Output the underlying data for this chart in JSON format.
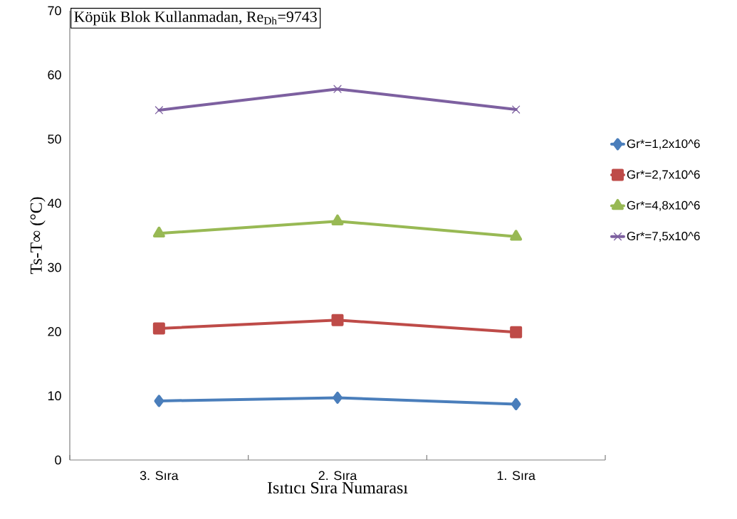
{
  "chart_data": {
    "type": "line",
    "title": "Köpük Blok Kullanmadan, Re$_{Dh}$=9743",
    "xlabel": "Isıtıcı Sıra Numarası",
    "ylabel": "Ts-T∞ (°C)",
    "categories": [
      "3. Sıra",
      "2. Sıra",
      "1. Sıra"
    ],
    "series": [
      {
        "name": "Gr*=1,2x10^6",
        "color": "#4a7ebb",
        "marker": "diamond",
        "values": [
          9.2,
          9.7,
          8.7
        ]
      },
      {
        "name": "Gr*=2,7x10^6",
        "color": "#be4b48",
        "marker": "square",
        "values": [
          20.5,
          21.8,
          19.9
        ]
      },
      {
        "name": "Gr*=4,8x10^6",
        "color": "#98b954",
        "marker": "triangle",
        "values": [
          35.3,
          37.2,
          34.8
        ]
      },
      {
        "name": "Gr*=7,5x10^6",
        "color": "#7d60a0",
        "marker": "cross",
        "values": [
          54.5,
          57.8,
          54.6
        ]
      }
    ],
    "ylim": [
      0,
      70
    ],
    "yticks": [
      0,
      10,
      20,
      30,
      40,
      50,
      60,
      70
    ],
    "legend": "right",
    "grid": false,
    "line_style": "solid"
  }
}
